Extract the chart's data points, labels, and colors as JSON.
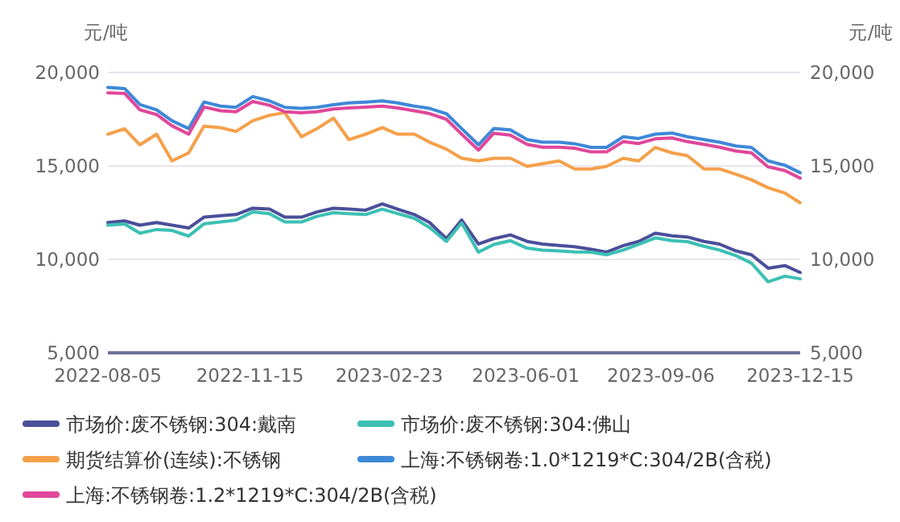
{
  "chart_data": {
    "type": "line",
    "ylabel": "元/吨",
    "y2label": "元/吨",
    "xlim": [
      "2022-08-05",
      "2023-12-15"
    ],
    "xticks": [
      "2022-08-05",
      "2022-11-15",
      "2023-02-23",
      "2023-06-01",
      "2023-09-06",
      "2023-12-15"
    ],
    "ylim": [
      5000,
      20000
    ],
    "yticks": [
      {
        "value": 5000,
        "label": "5,000"
      },
      {
        "value": 10000,
        "label": "10,000"
      },
      {
        "value": 15000,
        "label": "15,000"
      },
      {
        "value": 20000,
        "label": "20,000"
      }
    ],
    "y2lim": [
      5000,
      20000
    ],
    "y2ticks": [
      {
        "value": 5000,
        "label": "5,000"
      },
      {
        "value": 10000,
        "label": "10,000"
      },
      {
        "value": 15000,
        "label": "15,000"
      },
      {
        "value": 20000,
        "label": "20,000"
      }
    ],
    "grid": "y",
    "legend": "bottom",
    "x": [
      "2022-08-05",
      "2022-08-17",
      "2022-08-28",
      "2022-09-09",
      "2022-09-20",
      "2022-10-02",
      "2022-10-13",
      "2022-10-25",
      "2022-11-05",
      "2022-11-17",
      "2022-11-29",
      "2022-12-10",
      "2022-12-22",
      "2023-01-02",
      "2023-01-14",
      "2023-01-25",
      "2023-02-06",
      "2023-02-18",
      "2023-03-01",
      "2023-03-13",
      "2023-03-24",
      "2023-04-05",
      "2023-04-16",
      "2023-04-28",
      "2023-05-09",
      "2023-05-21",
      "2023-06-02",
      "2023-06-13",
      "2023-06-25",
      "2023-07-06",
      "2023-07-18",
      "2023-07-29",
      "2023-08-10",
      "2023-08-21",
      "2023-09-02",
      "2023-09-14",
      "2023-09-25",
      "2023-10-07",
      "2023-10-18",
      "2023-10-30",
      "2023-11-10",
      "2023-11-22",
      "2023-12-04",
      "2023-12-15"
    ],
    "series": [
      {
        "name": "市场价:废不锈钢:304:戴南",
        "color": "#4a4f9a",
        "values": [
          11970,
          12060,
          11830,
          11970,
          11830,
          11680,
          12260,
          12340,
          12400,
          12740,
          12690,
          12260,
          12260,
          12540,
          12740,
          12690,
          12630,
          12970,
          12690,
          12400,
          11970,
          11110,
          12110,
          10820,
          11110,
          11310,
          10960,
          10820,
          10740,
          10680,
          10540,
          10390,
          10740,
          10960,
          11400,
          11260,
          11200,
          10960,
          10820,
          10450,
          10250,
          9530,
          9670,
          9300
        ]
      },
      {
        "name": "市场价:废不锈钢:304:佛山",
        "color": "#3cc0b4",
        "values": [
          11830,
          11900,
          11400,
          11600,
          11550,
          11250,
          11900,
          12000,
          12100,
          12540,
          12450,
          12000,
          12000,
          12300,
          12500,
          12450,
          12400,
          12690,
          12450,
          12200,
          11700,
          10960,
          11950,
          10390,
          10800,
          11000,
          10600,
          10500,
          10450,
          10400,
          10390,
          10250,
          10500,
          10800,
          11150,
          11000,
          10950,
          10700,
          10500,
          10200,
          9800,
          8800,
          9100,
          8960
        ]
      },
      {
        "name": "期货结算价(连续):不锈钢",
        "color": "#f5a04a",
        "values": [
          16700,
          16990,
          16130,
          16700,
          15270,
          15700,
          17130,
          17050,
          16850,
          17420,
          17710,
          17850,
          16560,
          16990,
          17560,
          16410,
          16700,
          17050,
          16700,
          16700,
          16270,
          15900,
          15410,
          15270,
          15410,
          15410,
          14980,
          15120,
          15270,
          14840,
          14840,
          14980,
          15410,
          15270,
          15990,
          15700,
          15550,
          14840,
          14840,
          14550,
          14260,
          13830,
          13550,
          13030
        ]
      },
      {
        "name": "上海:不锈钢卷:1.0*1219*C:304/2B(含税)",
        "color": "#3f88d8",
        "values": [
          19200,
          19140,
          18280,
          18000,
          17420,
          17000,
          18420,
          18200,
          18140,
          18710,
          18480,
          18140,
          18080,
          18140,
          18280,
          18370,
          18420,
          18480,
          18370,
          18200,
          18080,
          17800,
          17000,
          16130,
          17000,
          16930,
          16410,
          16270,
          16270,
          16190,
          15990,
          15990,
          16560,
          16470,
          16700,
          16760,
          16560,
          16410,
          16270,
          16070,
          15990,
          15270,
          15040,
          14640
        ]
      },
      {
        "name": "上海:不锈钢卷:1.2*1219*C:304/2B(含税)",
        "color": "#e0479a",
        "values": [
          18910,
          18880,
          18000,
          17750,
          17150,
          16700,
          18150,
          17950,
          17900,
          18450,
          18250,
          17900,
          17850,
          17900,
          18050,
          18100,
          18150,
          18200,
          18100,
          17950,
          17800,
          17500,
          16700,
          15850,
          16750,
          16650,
          16150,
          16000,
          16000,
          15950,
          15750,
          15750,
          16300,
          16200,
          16450,
          16500,
          16300,
          16150,
          16000,
          15800,
          15700,
          14950,
          14750,
          14350
        ]
      }
    ]
  }
}
